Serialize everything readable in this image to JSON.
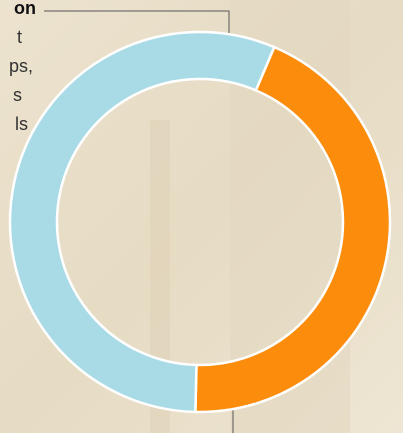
{
  "chart_data": {
    "type": "donut",
    "annotation": [
      "on",
      "t",
      "ps,",
      "s",
      "ls"
    ],
    "values": [
      44,
      56
    ],
    "colors": [
      "#fb8c0c",
      "#a9dbe7"
    ]
  }
}
